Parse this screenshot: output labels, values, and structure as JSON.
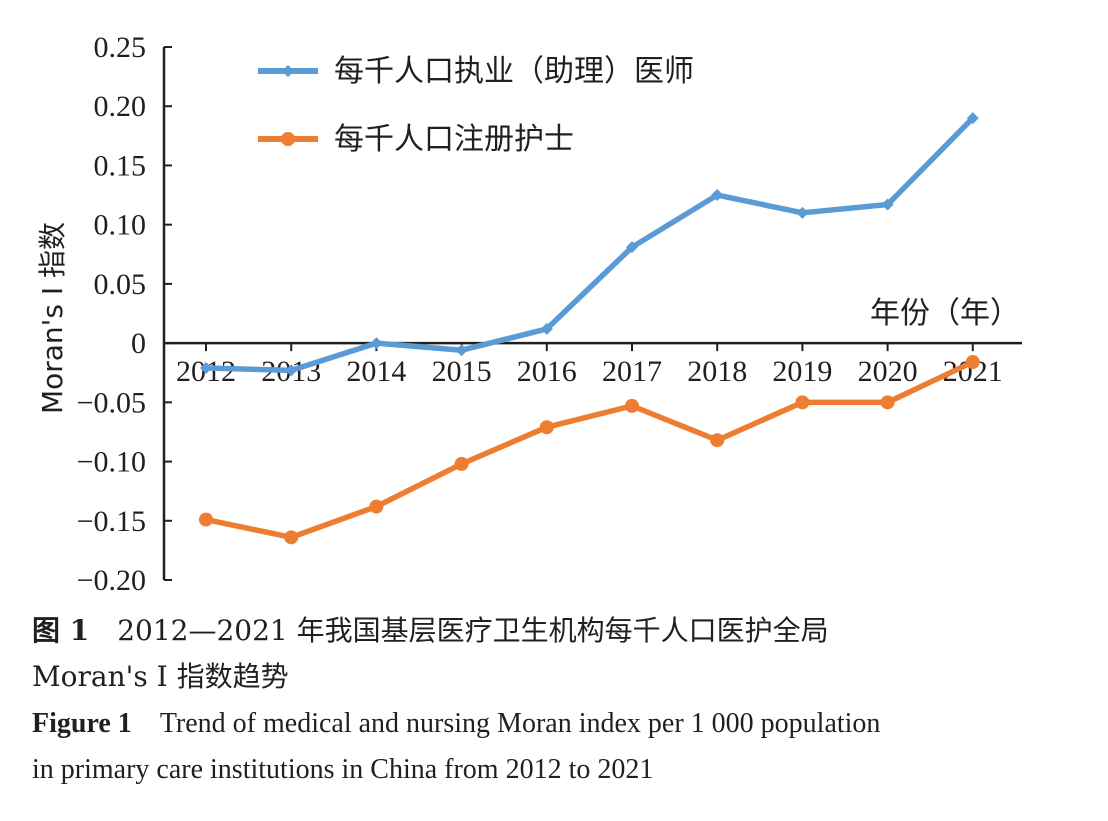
{
  "chart_data": {
    "type": "line",
    "x": [
      2012,
      2013,
      2014,
      2015,
      2016,
      2017,
      2018,
      2019,
      2020,
      2021
    ],
    "series": [
      {
        "name": "每千人口执业（助理）医师",
        "color": "#5b9bd5",
        "marker": "diamond",
        "values": [
          -0.021,
          -0.023,
          0.0,
          -0.006,
          0.012,
          0.081,
          0.125,
          0.11,
          0.117,
          0.19
        ]
      },
      {
        "name": "每千人口注册护士",
        "color": "#ed7d31",
        "marker": "circle",
        "values": [
          -0.149,
          -0.164,
          -0.138,
          -0.102,
          -0.071,
          -0.053,
          -0.082,
          -0.05,
          -0.05,
          -0.016
        ]
      }
    ],
    "ylabel": "Moran's I 指数",
    "xlabel": "年份（年）",
    "ylim": [
      -0.2,
      0.25
    ],
    "yticks": [
      "0.25",
      "0.20",
      "0.15",
      "0.10",
      "0.05",
      "0",
      "−0.05",
      "−0.10",
      "−0.15",
      "−0.20"
    ],
    "grid": false,
    "legend_position": "top-left"
  },
  "caption": {
    "cn_label": "图 1",
    "cn_line1": "2012—2021 年我国基层医疗卫生机构每千人口医护全局",
    "cn_line2": "Moran's I 指数趋势",
    "en_label": "Figure 1",
    "en_line1": "Trend of medical and nursing Moran index per 1 000 population",
    "en_line2": "in primary care institutions in China from 2012 to 2021"
  }
}
